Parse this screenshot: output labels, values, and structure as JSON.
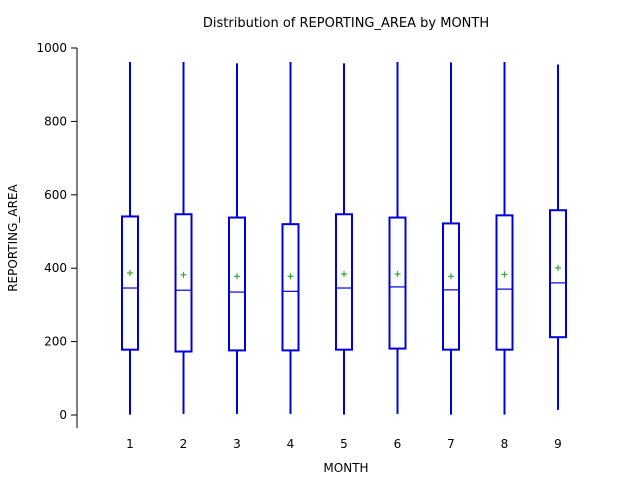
{
  "chart_data": {
    "type": "box",
    "title": "Distribution of REPORTING_AREA by MONTH",
    "xlabel": "MONTH",
    "ylabel": "REPORTING_AREA",
    "ylim": [
      -30,
      1000
    ],
    "yticks": [
      0,
      200,
      400,
      600,
      800,
      1000
    ],
    "categories": [
      "1",
      "2",
      "3",
      "4",
      "5",
      "6",
      "7",
      "8",
      "9"
    ],
    "boxes": [
      {
        "month": "1",
        "min": 1,
        "q1": 178,
        "median": 346,
        "mean": 387,
        "q3": 541,
        "max": 962
      },
      {
        "month": "2",
        "min": 3,
        "q1": 173,
        "median": 340,
        "mean": 382,
        "q3": 547,
        "max": 962
      },
      {
        "month": "3",
        "min": 3,
        "q1": 176,
        "median": 335,
        "mean": 378,
        "q3": 538,
        "max": 958
      },
      {
        "month": "4",
        "min": 3,
        "q1": 176,
        "median": 337,
        "mean": 378,
        "q3": 520,
        "max": 962
      },
      {
        "month": "5",
        "min": 1,
        "q1": 178,
        "median": 346,
        "mean": 384,
        "q3": 547,
        "max": 958
      },
      {
        "month": "6",
        "min": 3,
        "q1": 181,
        "median": 349,
        "mean": 384,
        "q3": 538,
        "max": 962
      },
      {
        "month": "7",
        "min": 1,
        "q1": 178,
        "median": 341,
        "mean": 378,
        "q3": 522,
        "max": 961
      },
      {
        "month": "8",
        "min": 1,
        "q1": 178,
        "median": 343,
        "mean": 383,
        "q3": 544,
        "max": 962
      },
      {
        "month": "9",
        "min": 14,
        "q1": 212,
        "median": 360,
        "mean": 401,
        "q3": 558,
        "max": 955
      }
    ],
    "colors": {
      "box": "#0000dd",
      "mean_marker": "#33aa33"
    },
    "grid": false,
    "legend": "none"
  }
}
